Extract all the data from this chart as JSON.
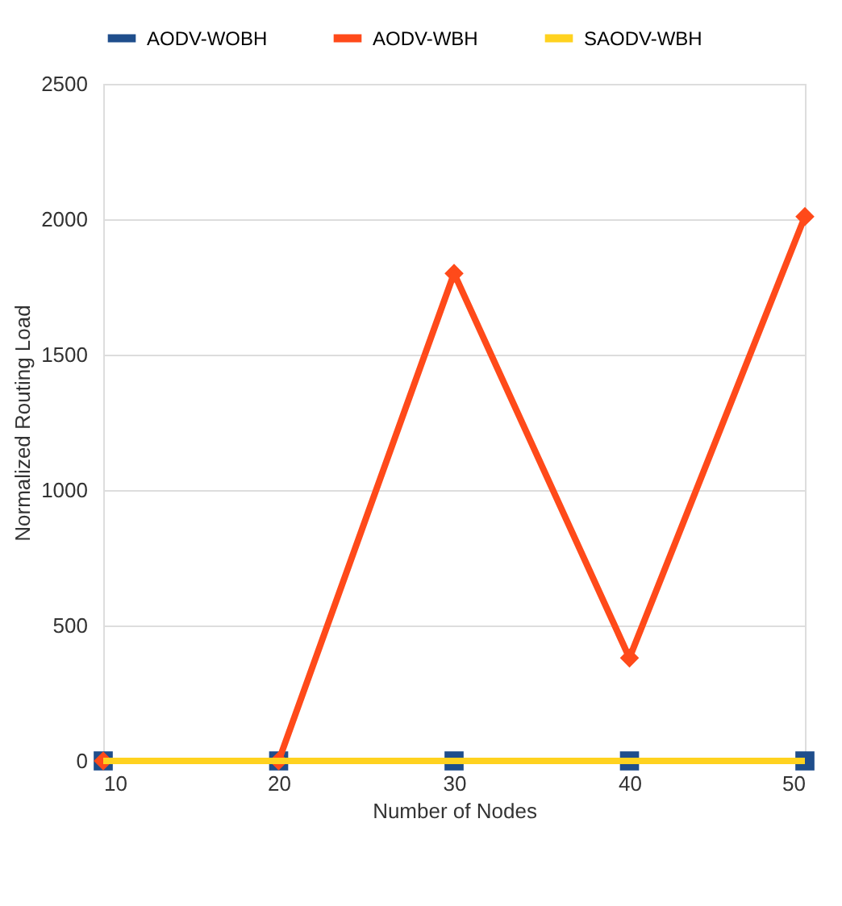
{
  "chart_data": {
    "type": "line",
    "xlabel": "Number of Nodes",
    "ylabel": "Normalized Routing Load",
    "x": [
      10,
      20,
      30,
      40,
      50
    ],
    "xlim": [
      10,
      50
    ],
    "xticks": [
      10,
      20,
      30,
      40,
      50
    ],
    "ylim": [
      0,
      2500
    ],
    "yticks": [
      0,
      500,
      1000,
      1500,
      2000,
      2500
    ],
    "grid": "y",
    "legend": "top",
    "series": [
      {
        "name": "AODV-WOBH",
        "color": "#1f4e8c",
        "marker": "square",
        "values": [
          0,
          0,
          0,
          0,
          0
        ]
      },
      {
        "name": "AODV-WBH",
        "color": "#ff4a1a",
        "marker": "diamond",
        "values": [
          0,
          0,
          1800,
          380,
          2010
        ]
      },
      {
        "name": "SAODV-WBH",
        "color": "#ffd21f",
        "marker": "none",
        "values": [
          0,
          0,
          0,
          0,
          0
        ]
      }
    ]
  }
}
